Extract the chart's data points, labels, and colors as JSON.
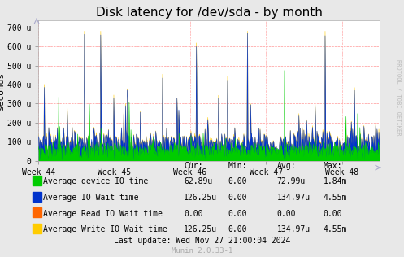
{
  "title": "Disk latency for /dev/sda - by month",
  "ylabel": "seconds",
  "background_color": "#e8e8e8",
  "plot_bg_color": "#ffffff",
  "y_ticks": [
    0,
    100,
    200,
    300,
    400,
    500,
    600,
    700
  ],
  "y_tick_labels": [
    "0",
    "100 u",
    "200 u",
    "300 u",
    "400 u",
    "500 u",
    "600 u",
    "700 u"
  ],
  "ylim": [
    0,
    736
  ],
  "xlim_hours": 756,
  "x_week_positions": [
    0,
    168,
    336,
    504,
    672
  ],
  "x_tick_labels": [
    "Week 44",
    "Week 45",
    "Week 46",
    "Week 47",
    "Week 48"
  ],
  "series_colors": {
    "write_io_wait": "#ffcc00",
    "io_wait": "#0033cc",
    "device_io": "#00cc00",
    "read_io_wait": "#ff6600"
  },
  "legend_colors": [
    "#00cc00",
    "#0033cc",
    "#ff6600",
    "#ffcc00"
  ],
  "legend_labels": [
    "Average device IO time",
    "Average IO Wait time",
    "Average Read IO Wait time",
    "Average Write IO Wait time"
  ],
  "legend_cur": [
    "62.89u",
    "126.25u",
    "0.00",
    "126.25u"
  ],
  "legend_min": [
    "0.00",
    "0.00",
    "0.00",
    "0.00"
  ],
  "legend_avg": [
    "72.99u",
    "134.97u",
    "0.00",
    "134.97u"
  ],
  "legend_max": [
    "1.84m",
    "4.55m",
    "0.00",
    "4.55m"
  ],
  "footer": "Last update: Wed Nov 27 21:00:04 2024",
  "footer2": "Munin 2.0.33-1",
  "watermark": "RRDTOOL / TOBI OETIKER",
  "grid_h_color": "#ff9999",
  "grid_v_color": "#ffaaaa",
  "title_fontsize": 11,
  "axis_fontsize": 7,
  "legend_fontsize": 7
}
